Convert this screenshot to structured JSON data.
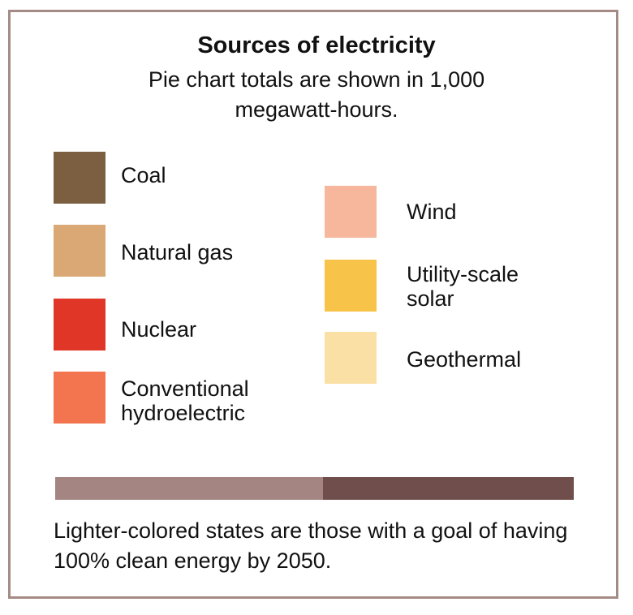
{
  "title": "Sources of electricity",
  "subtitle": "Pie chart totals are shown in 1,000 megawatt-hours.",
  "legend": [
    {
      "label": "Coal",
      "color": "#7b5f40"
    },
    {
      "label": "Natural gas",
      "color": "#d9a874"
    },
    {
      "label": "Nuclear",
      "color": "#e03627"
    },
    {
      "label": "Conventional hydroelectric",
      "color": "#f37550"
    },
    {
      "label": "Wind",
      "color": "#f6b79d"
    },
    {
      "label": "Utility-scale solar",
      "color": "#f8c349"
    },
    {
      "label": "Geothermal",
      "color": "#fbe0a5"
    }
  ],
  "state_key": {
    "goal_state_color": "#a48581",
    "other_state_color": "#6f4e4b"
  },
  "footnote": "Lighter-colored states are those with a goal of having 100% clean energy by 2050.",
  "frame_color": "#a48b86"
}
